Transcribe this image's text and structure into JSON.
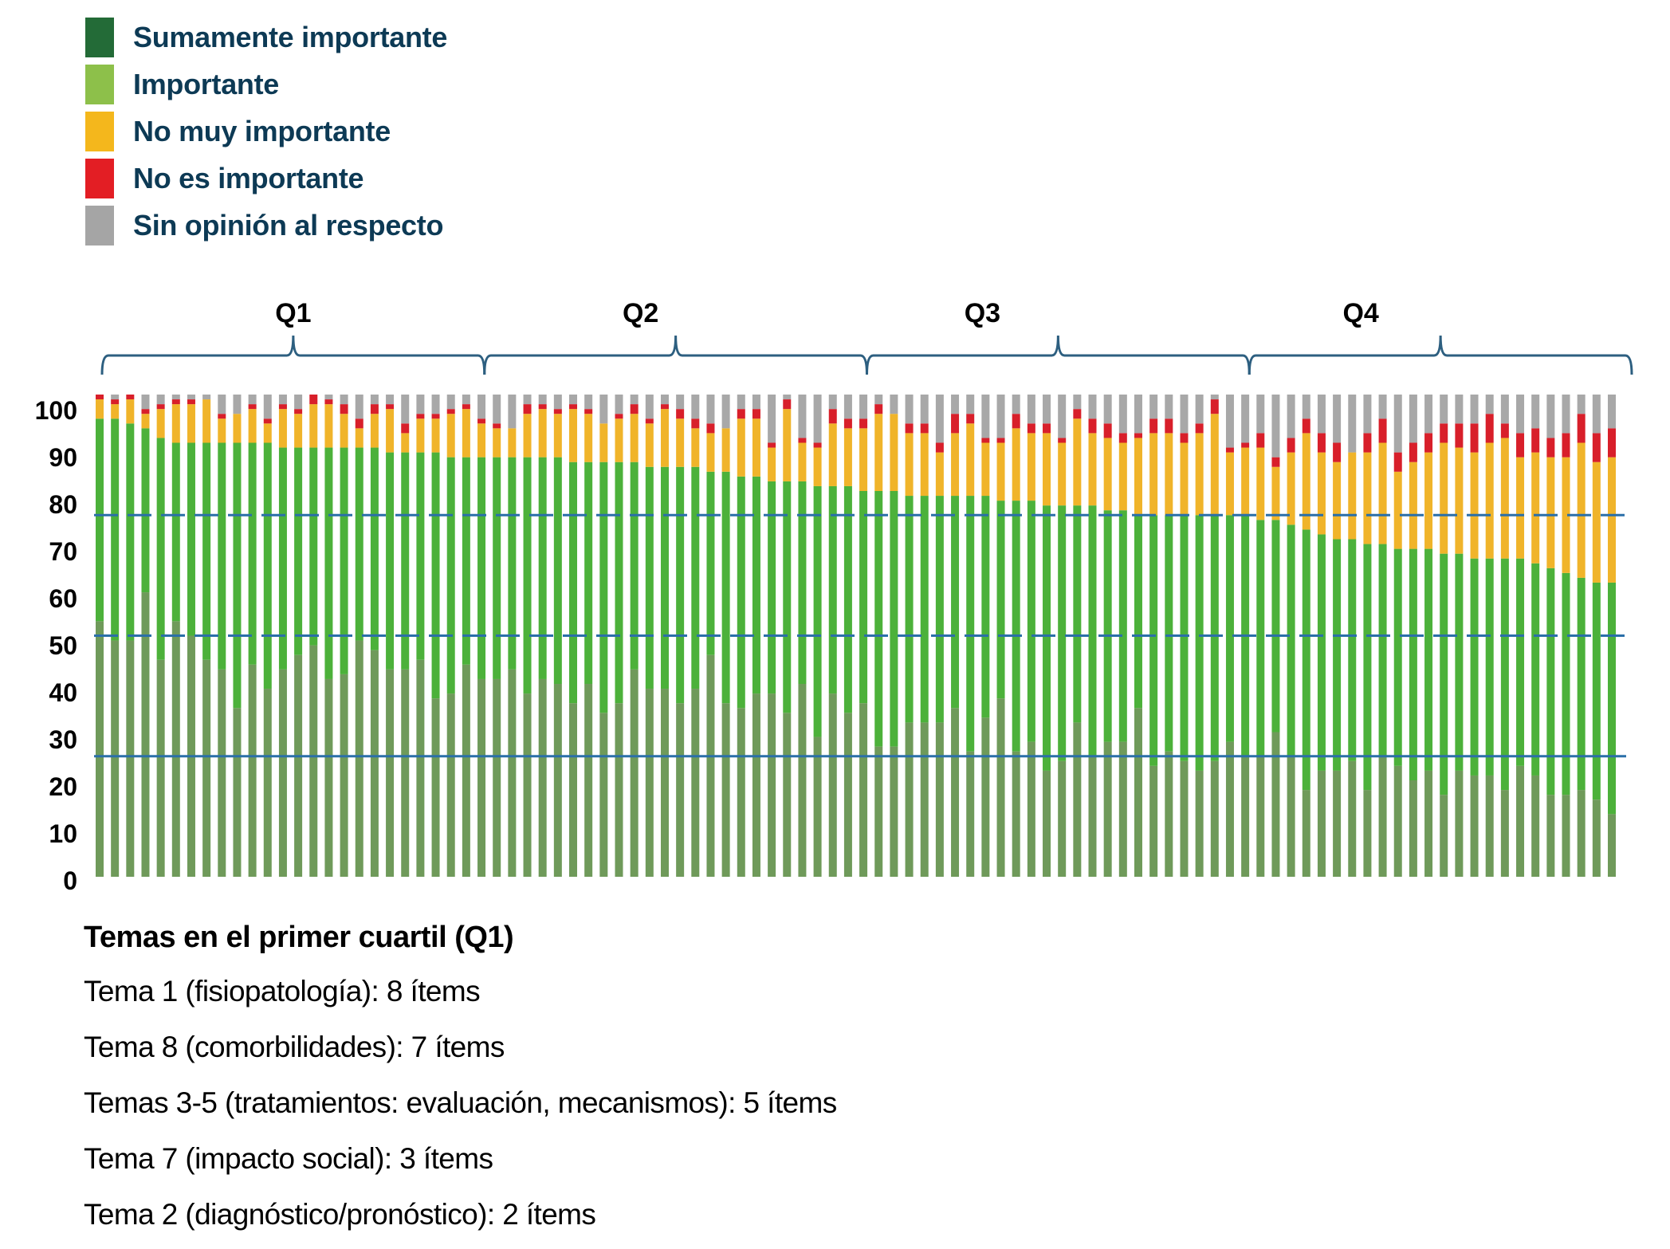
{
  "legend": [
    {
      "label": "Sumamente importante",
      "color": "#236b37"
    },
    {
      "label": "Importante",
      "color": "#8dc04a"
    },
    {
      "label": "No muy importante",
      "color": "#f4b71c"
    },
    {
      "label": "No es importante",
      "color": "#e31e24"
    },
    {
      "label": "Sin opinión al respecto",
      "color": "#a5a5a5"
    }
  ],
  "chart_data": {
    "type": "bar",
    "stacked": true,
    "title": "",
    "xlabel": "",
    "ylabel": "",
    "ylim": [
      0,
      100
    ],
    "yticks": [
      100,
      90,
      80,
      70,
      60,
      50,
      40,
      30,
      20,
      10,
      0
    ],
    "grid": false,
    "legend_position": "top-left",
    "reference_lines": [
      {
        "y": 75,
        "style": "dashed",
        "color": "#2a6fa8"
      },
      {
        "y": 50,
        "style": "dashed",
        "color": "#2a6fa8"
      },
      {
        "y": 25,
        "style": "solid",
        "color": "#2a6fa8"
      }
    ],
    "groups": [
      {
        "label": "Q1",
        "bars": 25
      },
      {
        "label": "Q2",
        "bars": 25
      },
      {
        "label": "Q3",
        "bars": 25
      },
      {
        "label": "Q4",
        "bars": 25
      }
    ],
    "series": [
      {
        "name": "Sumamente importante",
        "color": "#6f9a5a",
        "values": [
          53,
          49,
          49,
          59,
          45,
          53,
          50,
          45,
          43,
          35,
          44,
          39,
          43,
          46,
          48,
          41,
          42,
          49,
          47,
          43,
          43,
          45,
          37,
          38,
          44,
          41,
          41,
          43,
          38,
          41,
          40,
          36,
          40,
          34,
          36,
          43,
          39,
          39,
          36,
          39,
          46,
          36,
          35,
          38,
          38,
          34,
          40,
          29,
          38,
          34,
          36,
          27,
          27,
          32,
          32,
          32,
          35,
          26,
          33,
          37,
          26,
          28,
          22,
          24,
          32,
          25,
          28,
          28,
          35,
          23,
          26,
          24,
          22,
          24,
          28,
          25,
          25,
          30,
          25,
          18,
          22,
          22,
          24,
          18,
          25,
          23,
          20,
          22,
          17,
          22,
          21,
          21,
          18,
          23,
          21,
          17,
          17,
          18,
          16,
          13
        ]
      },
      {
        "name": "Importante",
        "color": "#4cb13a",
        "values": [
          42,
          46,
          45,
          34,
          46,
          37,
          40,
          45,
          47,
          55,
          46,
          51,
          46,
          43,
          41,
          48,
          47,
          40,
          42,
          45,
          45,
          43,
          51,
          49,
          43,
          46,
          46,
          44,
          49,
          46,
          47,
          50,
          46,
          52,
          50,
          43,
          46,
          46,
          49,
          46,
          38,
          48,
          48,
          45,
          44,
          48,
          42,
          52,
          43,
          47,
          44,
          53,
          53,
          47,
          47,
          47,
          44,
          53,
          46,
          41,
          52,
          50,
          55,
          53,
          45,
          52,
          48,
          48,
          40,
          52,
          49,
          51,
          53,
          51,
          47,
          50,
          49,
          44,
          48,
          54,
          49,
          48,
          46,
          51,
          44,
          45,
          48,
          46,
          50,
          45,
          45,
          45,
          48,
          43,
          44,
          47,
          46,
          44,
          45,
          48
        ]
      },
      {
        "name": "No muy importante",
        "color": "#f0b42a",
        "values": [
          4,
          3,
          5,
          3,
          6,
          8,
          8,
          9,
          5,
          6,
          7,
          4,
          8,
          7,
          9,
          9,
          7,
          4,
          7,
          9,
          4,
          7,
          7,
          9,
          10,
          7,
          6,
          6,
          9,
          10,
          9,
          11,
          10,
          8,
          9,
          10,
          9,
          12,
          10,
          8,
          8,
          9,
          12,
          12,
          7,
          15,
          8,
          8,
          13,
          12,
          13,
          16,
          16,
          13,
          13,
          9,
          13,
          15,
          11,
          12,
          15,
          14,
          15,
          13,
          18,
          15,
          15,
          14,
          16,
          17,
          17,
          15,
          17,
          21,
          13,
          14,
          15,
          11,
          15,
          20,
          17,
          16,
          18,
          19,
          21,
          16,
          18,
          20,
          23,
          22,
          22,
          24,
          25,
          21,
          23,
          23,
          24,
          28,
          25,
          26
        ]
      },
      {
        "name": "No es importante",
        "color": "#d81f2a",
        "values": [
          1,
          1,
          1,
          1,
          1,
          1,
          1,
          0,
          1,
          0,
          1,
          1,
          1,
          1,
          2,
          1,
          2,
          2,
          2,
          1,
          2,
          1,
          1,
          1,
          1,
          1,
          1,
          0,
          2,
          1,
          1,
          1,
          1,
          0,
          1,
          2,
          1,
          1,
          2,
          2,
          2,
          0,
          2,
          2,
          1,
          2,
          1,
          1,
          3,
          2,
          2,
          2,
          0,
          2,
          2,
          2,
          4,
          2,
          1,
          1,
          3,
          2,
          2,
          1,
          2,
          3,
          3,
          2,
          1,
          3,
          3,
          2,
          2,
          3,
          1,
          1,
          3,
          2,
          3,
          3,
          4,
          4,
          0,
          4,
          5,
          4,
          4,
          4,
          4,
          5,
          6,
          6,
          3,
          5,
          5,
          4,
          5,
          6,
          6,
          6
        ]
      },
      {
        "name": "Sin opinión al respecto",
        "color": "#a8a8a8",
        "values": [
          0,
          1,
          0,
          3,
          2,
          1,
          1,
          1,
          4,
          4,
          2,
          5,
          2,
          3,
          0,
          1,
          2,
          5,
          2,
          2,
          6,
          4,
          4,
          3,
          2,
          5,
          6,
          7,
          2,
          2,
          3,
          2,
          3,
          6,
          4,
          2,
          5,
          2,
          3,
          5,
          6,
          7,
          3,
          3,
          10,
          1,
          9,
          10,
          3,
          5,
          5,
          2,
          4,
          6,
          6,
          10,
          4,
          4,
          9,
          9,
          4,
          6,
          6,
          9,
          3,
          5,
          6,
          8,
          8,
          5,
          5,
          8,
          6,
          1,
          11,
          10,
          8,
          13,
          9,
          5,
          8,
          10,
          12,
          8,
          5,
          12,
          10,
          8,
          6,
          6,
          6,
          4,
          6,
          8,
          7,
          9,
          8,
          4,
          8,
          7
        ]
      }
    ]
  },
  "notes": {
    "title": "Temas en el primer cuartil (Q1)",
    "items": [
      "Tema 1 (fisiopatología): 8 ítems",
      "Tema 8 (comorbilidades): 7 ítems",
      "Temas 3-5 (tratamientos: evaluación, mecanismos): 5 ítems",
      "Tema 7 (impacto social): 3 ítems",
      "Tema 2 (diagnóstico/pronóstico): 2 ítems"
    ]
  }
}
